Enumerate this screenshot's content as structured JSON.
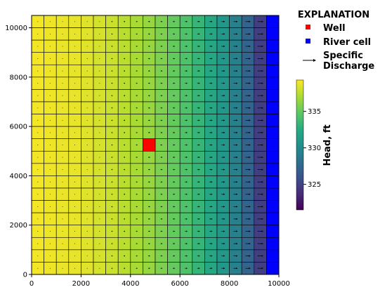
{
  "chart_data": {
    "type": "heatmap",
    "title": "",
    "xlabel": "",
    "ylabel": "",
    "xlim": [
      0,
      10000
    ],
    "ylim": [
      0,
      10500
    ],
    "xticks": [
      0,
      2000,
      4000,
      6000,
      8000,
      10000
    ],
    "yticks": [
      0,
      2000,
      4000,
      6000,
      8000,
      10000
    ],
    "xtick_labels": [
      "0",
      "2000",
      "4000",
      "6000",
      "8000",
      "10000"
    ],
    "ytick_labels": [
      "0",
      "2000",
      "4000",
      "6000",
      "8000",
      "10000"
    ],
    "grid_ncol": 20,
    "grid_nrow": 21,
    "column_heads_ft": [
      339.0,
      338.9,
      338.8,
      338.7,
      338.5,
      338.2,
      337.9,
      337.5,
      337.0,
      336.5,
      335.8,
      335.1,
      334.3,
      333.3,
      332.2,
      330.9,
      329.3,
      327.3,
      324.8,
      321.8
    ],
    "head_range": [
      321.5,
      339.3
    ],
    "well": {
      "col": 9,
      "row": 10,
      "color": "#ff0000"
    },
    "river": {
      "col": 19,
      "color": "#0000ff"
    },
    "colorbar": {
      "label": "Head, ft",
      "ticks": [
        325,
        330,
        335
      ],
      "tick_labels": [
        "325",
        "330",
        "335"
      ]
    },
    "legend": {
      "title": "EXPLANATION",
      "placement": "top-right",
      "items": [
        {
          "label": "Well",
          "symbol": "square",
          "color": "#ff0000"
        },
        {
          "label": "River cell",
          "symbol": "square",
          "color": "#0000ff"
        },
        {
          "label": "Specific",
          "label2": "Discharge",
          "symbol": "arrow",
          "color": "#000000"
        }
      ]
    }
  }
}
